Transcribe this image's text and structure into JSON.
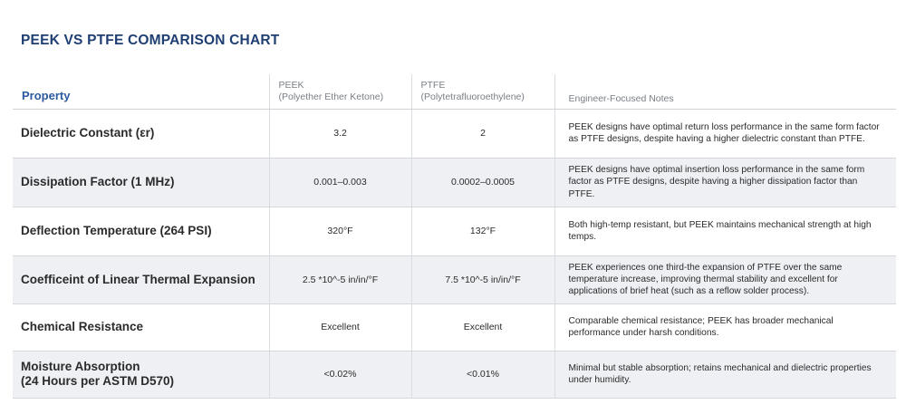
{
  "page": {
    "title": "PEEK VS PTFE COMPARISON CHART"
  },
  "table": {
    "headers": {
      "property": "Property",
      "peek_name": "PEEK",
      "peek_full": "(Polyether Ether Ketone)",
      "ptfe_name": "PTFE",
      "ptfe_full": "(Polytetrafluoroethylene)",
      "notes": "Engineer-Focused Notes"
    },
    "rows": [
      {
        "property": "Dielectric Constant (εr)",
        "peek": "3.2",
        "ptfe": "2",
        "notes": "PEEK designs have optimal return loss performance in the same form factor as PTFE designs, despite having a higher dielectric constant than PTFE."
      },
      {
        "property": "Dissipation Factor (1 MHz)",
        "peek": "0.001–0.003",
        "ptfe": "0.0002–0.0005",
        "notes": "PEEK designs have optimal insertion loss performance in the same form factor as PTFE designs, despite having a higher dissipation factor than PTFE."
      },
      {
        "property": "Deflection Temperature (264 PSI)",
        "peek": "320°F",
        "ptfe": "132°F",
        "notes": "Both high-temp resistant, but PEEK maintains mechanical strength at high temps."
      },
      {
        "property": "Coefficeint of Linear Thermal Expansion",
        "peek": "2.5 *10^-5 in/in/°F",
        "ptfe": "7.5 *10^-5 in/in/°F",
        "notes": "PEEK experiences one third-the expansion of PTFE over the same temperature increase, improving thermal stability and excellent for applications of brief heat (such as a reflow solder process)."
      },
      {
        "property": "Chemical Resistance",
        "peek": "Excellent",
        "ptfe": "Excellent",
        "notes": "Comparable chemical resistance; PEEK has broader mechanical performance under harsh conditions."
      },
      {
        "property_line1": "Moisture Absorption",
        "property_line2": "(24 Hours per ASTM D570)",
        "peek": "<0.02%",
        "ptfe": "<0.01%",
        "notes": "Minimal but stable absorption; retains mechanical and dielectric properties under humidity."
      }
    ]
  }
}
